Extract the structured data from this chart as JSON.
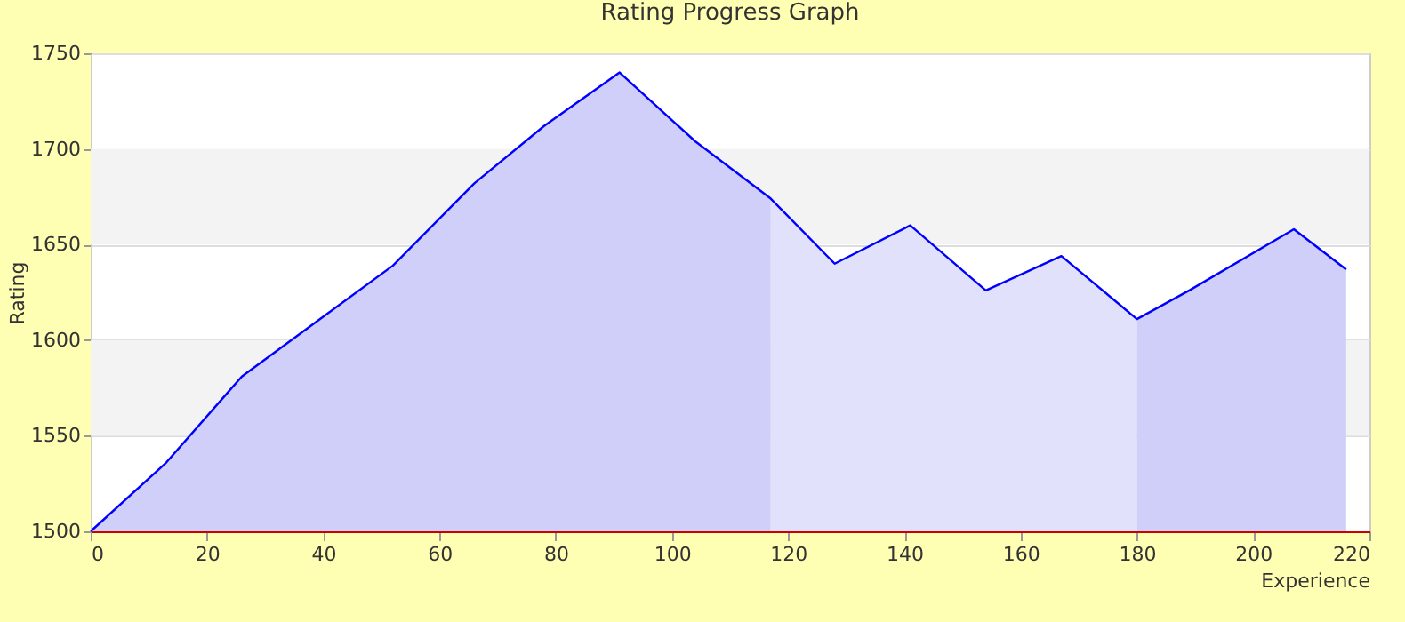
{
  "chart_data": {
    "type": "area",
    "title": "Rating Progress Graph",
    "xlabel": "Experience",
    "ylabel": "Rating",
    "series": [
      {
        "color": "#cfcffa",
        "x": [
          0,
          13,
          26,
          39,
          52,
          66,
          78,
          91,
          104,
          117
        ],
        "values": [
          1500,
          1536,
          1581,
          1610,
          1639,
          1682,
          1712,
          1740,
          1704,
          1674
        ]
      },
      {
        "color": "#e1e1fb",
        "x": [
          117,
          128,
          141,
          154,
          167,
          180
        ],
        "values": [
          1674,
          1640,
          1660,
          1626,
          1644,
          1611
        ]
      },
      {
        "color": "#cfcffa",
        "x": [
          180,
          189,
          207,
          216
        ],
        "values": [
          1611,
          1626,
          1658,
          1637
        ]
      },
      {
        "type": "line",
        "color": "#0000ff",
        "x": [
          0,
          13,
          26,
          39,
          52,
          66,
          78,
          91,
          104,
          117,
          128,
          141,
          154,
          167,
          180,
          189,
          207,
          216
        ],
        "values": [
          1500,
          1536,
          1581,
          1610,
          1639,
          1682,
          1712,
          1740,
          1704,
          1674,
          1640,
          1660,
          1626,
          1644,
          1611,
          1626,
          1658,
          1637
        ]
      }
    ],
    "xlim": [
      0,
      220
    ],
    "xticks": [
      0,
      20,
      40,
      60,
      80,
      100,
      120,
      140,
      160,
      180,
      200,
      220
    ],
    "ylim": [
      1500,
      1750
    ],
    "yticks": [
      1500,
      1550,
      1600,
      1650,
      1700,
      1750
    ],
    "grid": "y",
    "marker": "none"
  }
}
